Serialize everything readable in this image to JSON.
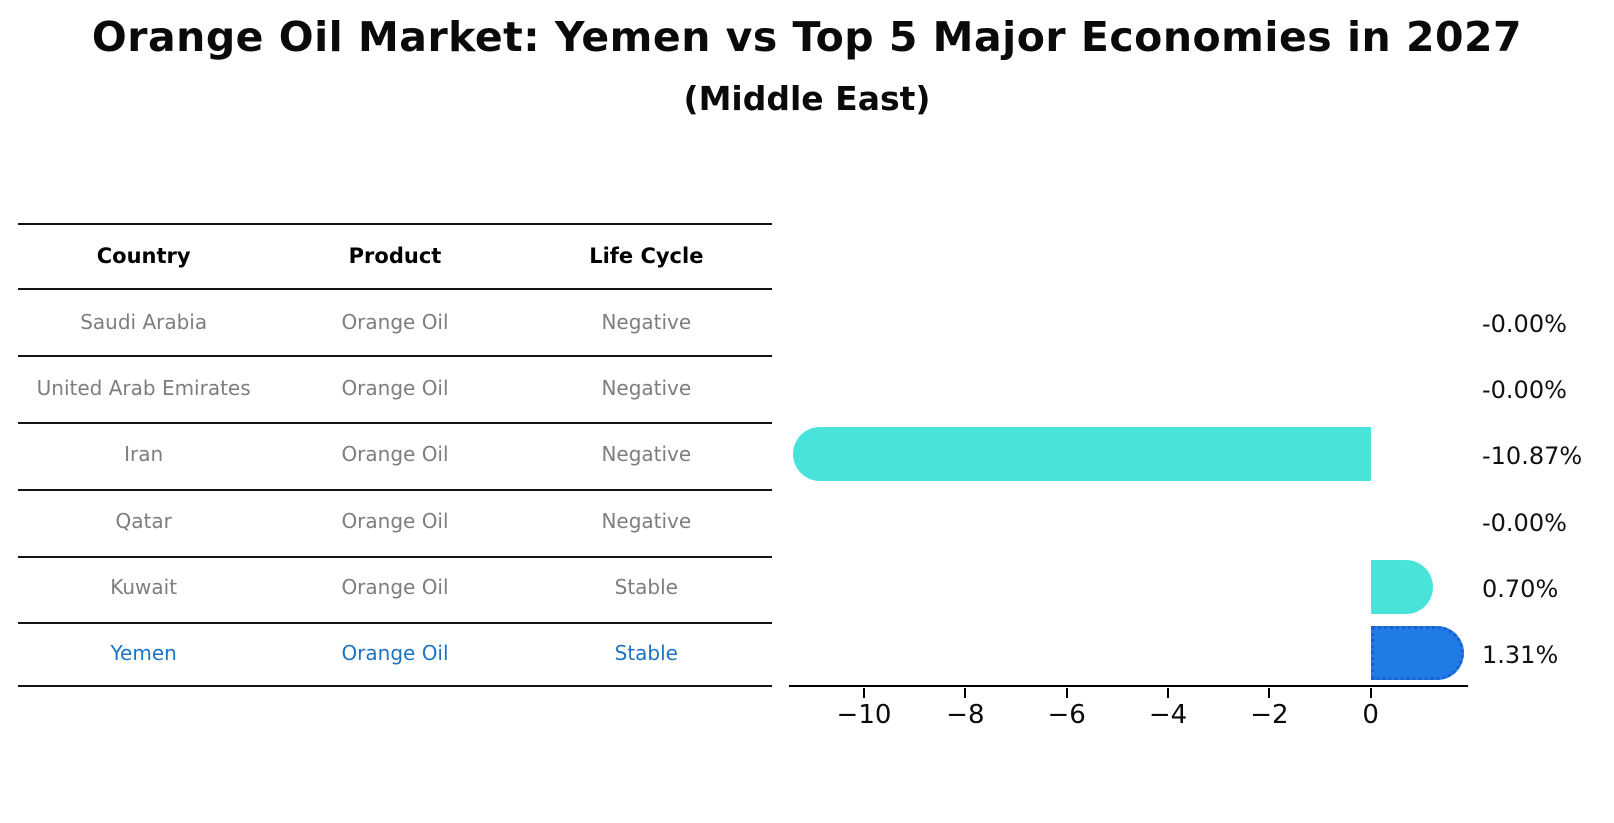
{
  "title": "Orange Oil Market: Yemen vs Top 5 Major Economies in 2027",
  "subtitle": "(Middle East)",
  "table": {
    "headers": [
      "Country",
      "Product",
      "Life Cycle"
    ],
    "rows": [
      {
        "cells": [
          "Saudi Arabia",
          "Orange Oil",
          "Negative"
        ],
        "highlight": false
      },
      {
        "cells": [
          "United Arab Emirates",
          "Orange Oil",
          "Negative"
        ],
        "highlight": false
      },
      {
        "cells": [
          "Iran",
          "Orange Oil",
          "Negative"
        ],
        "highlight": false
      },
      {
        "cells": [
          "Qatar",
          "Orange Oil",
          "Negative"
        ],
        "highlight": false
      },
      {
        "cells": [
          "Kuwait",
          "Orange Oil",
          "Stable"
        ],
        "highlight": false
      },
      {
        "cells": [
          "Yemen",
          "Orange Oil",
          "Stable"
        ],
        "highlight": true
      }
    ]
  },
  "chart_data": {
    "type": "bar",
    "orientation": "horizontal",
    "title": "Orange Oil Market: Yemen vs Top 5 Major Economies in 2027 (Middle East)",
    "categories": [
      "Saudi Arabia",
      "United Arab Emirates",
      "Iran",
      "Qatar",
      "Kuwait",
      "Yemen"
    ],
    "values": [
      -0.0,
      -0.0,
      -10.87,
      -0.0,
      0.7,
      1.31
    ],
    "value_labels": [
      "-0.00%",
      "-0.00%",
      "-10.87%",
      "-0.00%",
      "0.70%",
      "1.31%"
    ],
    "xlabel": "",
    "ylabel": "",
    "xlim": [
      -11.48,
      1.92
    ],
    "xticks": [
      -10,
      -8,
      -6,
      -4,
      -2,
      0
    ],
    "xtick_labels": [
      "−10",
      "−8",
      "−6",
      "−4",
      "−2",
      "0"
    ],
    "grid": false,
    "legend": false,
    "highlight_index": 5,
    "colors": {
      "bar_default": "#48e4dc",
      "bar_highlight": "#1f7be6",
      "bar_highlight_edge": "#1a5fd0",
      "table_text": "#7e7e7e",
      "table_highlight_text": "#1e74c2",
      "axis": "#000000"
    }
  }
}
